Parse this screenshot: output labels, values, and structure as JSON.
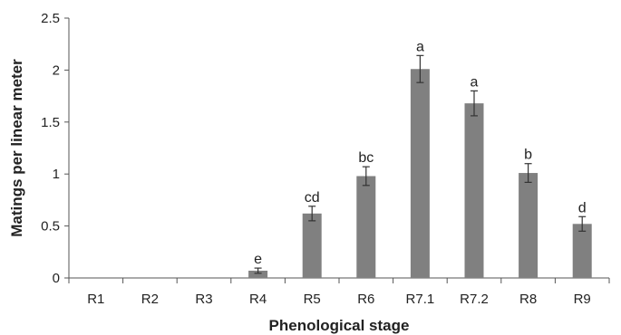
{
  "chart_data": {
    "type": "bar",
    "xlabel": "Phenological stage",
    "ylabel": "Matings per linear meter",
    "ylim": [
      0,
      2.5
    ],
    "yticks": [
      "0",
      "0.5",
      "1",
      "1.5",
      "2",
      "2.5"
    ],
    "categories": [
      "R1",
      "R2",
      "R3",
      "R4",
      "R5",
      "R6",
      "R7.1",
      "R7.2",
      "R8",
      "R9"
    ],
    "values": [
      0,
      0,
      0,
      0.07,
      0.62,
      0.98,
      2.01,
      1.68,
      1.01,
      0.52
    ],
    "errors": [
      0,
      0,
      0,
      0.025,
      0.07,
      0.09,
      0.13,
      0.12,
      0.09,
      0.07
    ],
    "significance_letters": [
      "",
      "",
      "",
      "e",
      "cd",
      "bc",
      "a",
      "a",
      "b",
      "d"
    ],
    "bar_color": "#808080",
    "grid": false,
    "legend": "none"
  }
}
